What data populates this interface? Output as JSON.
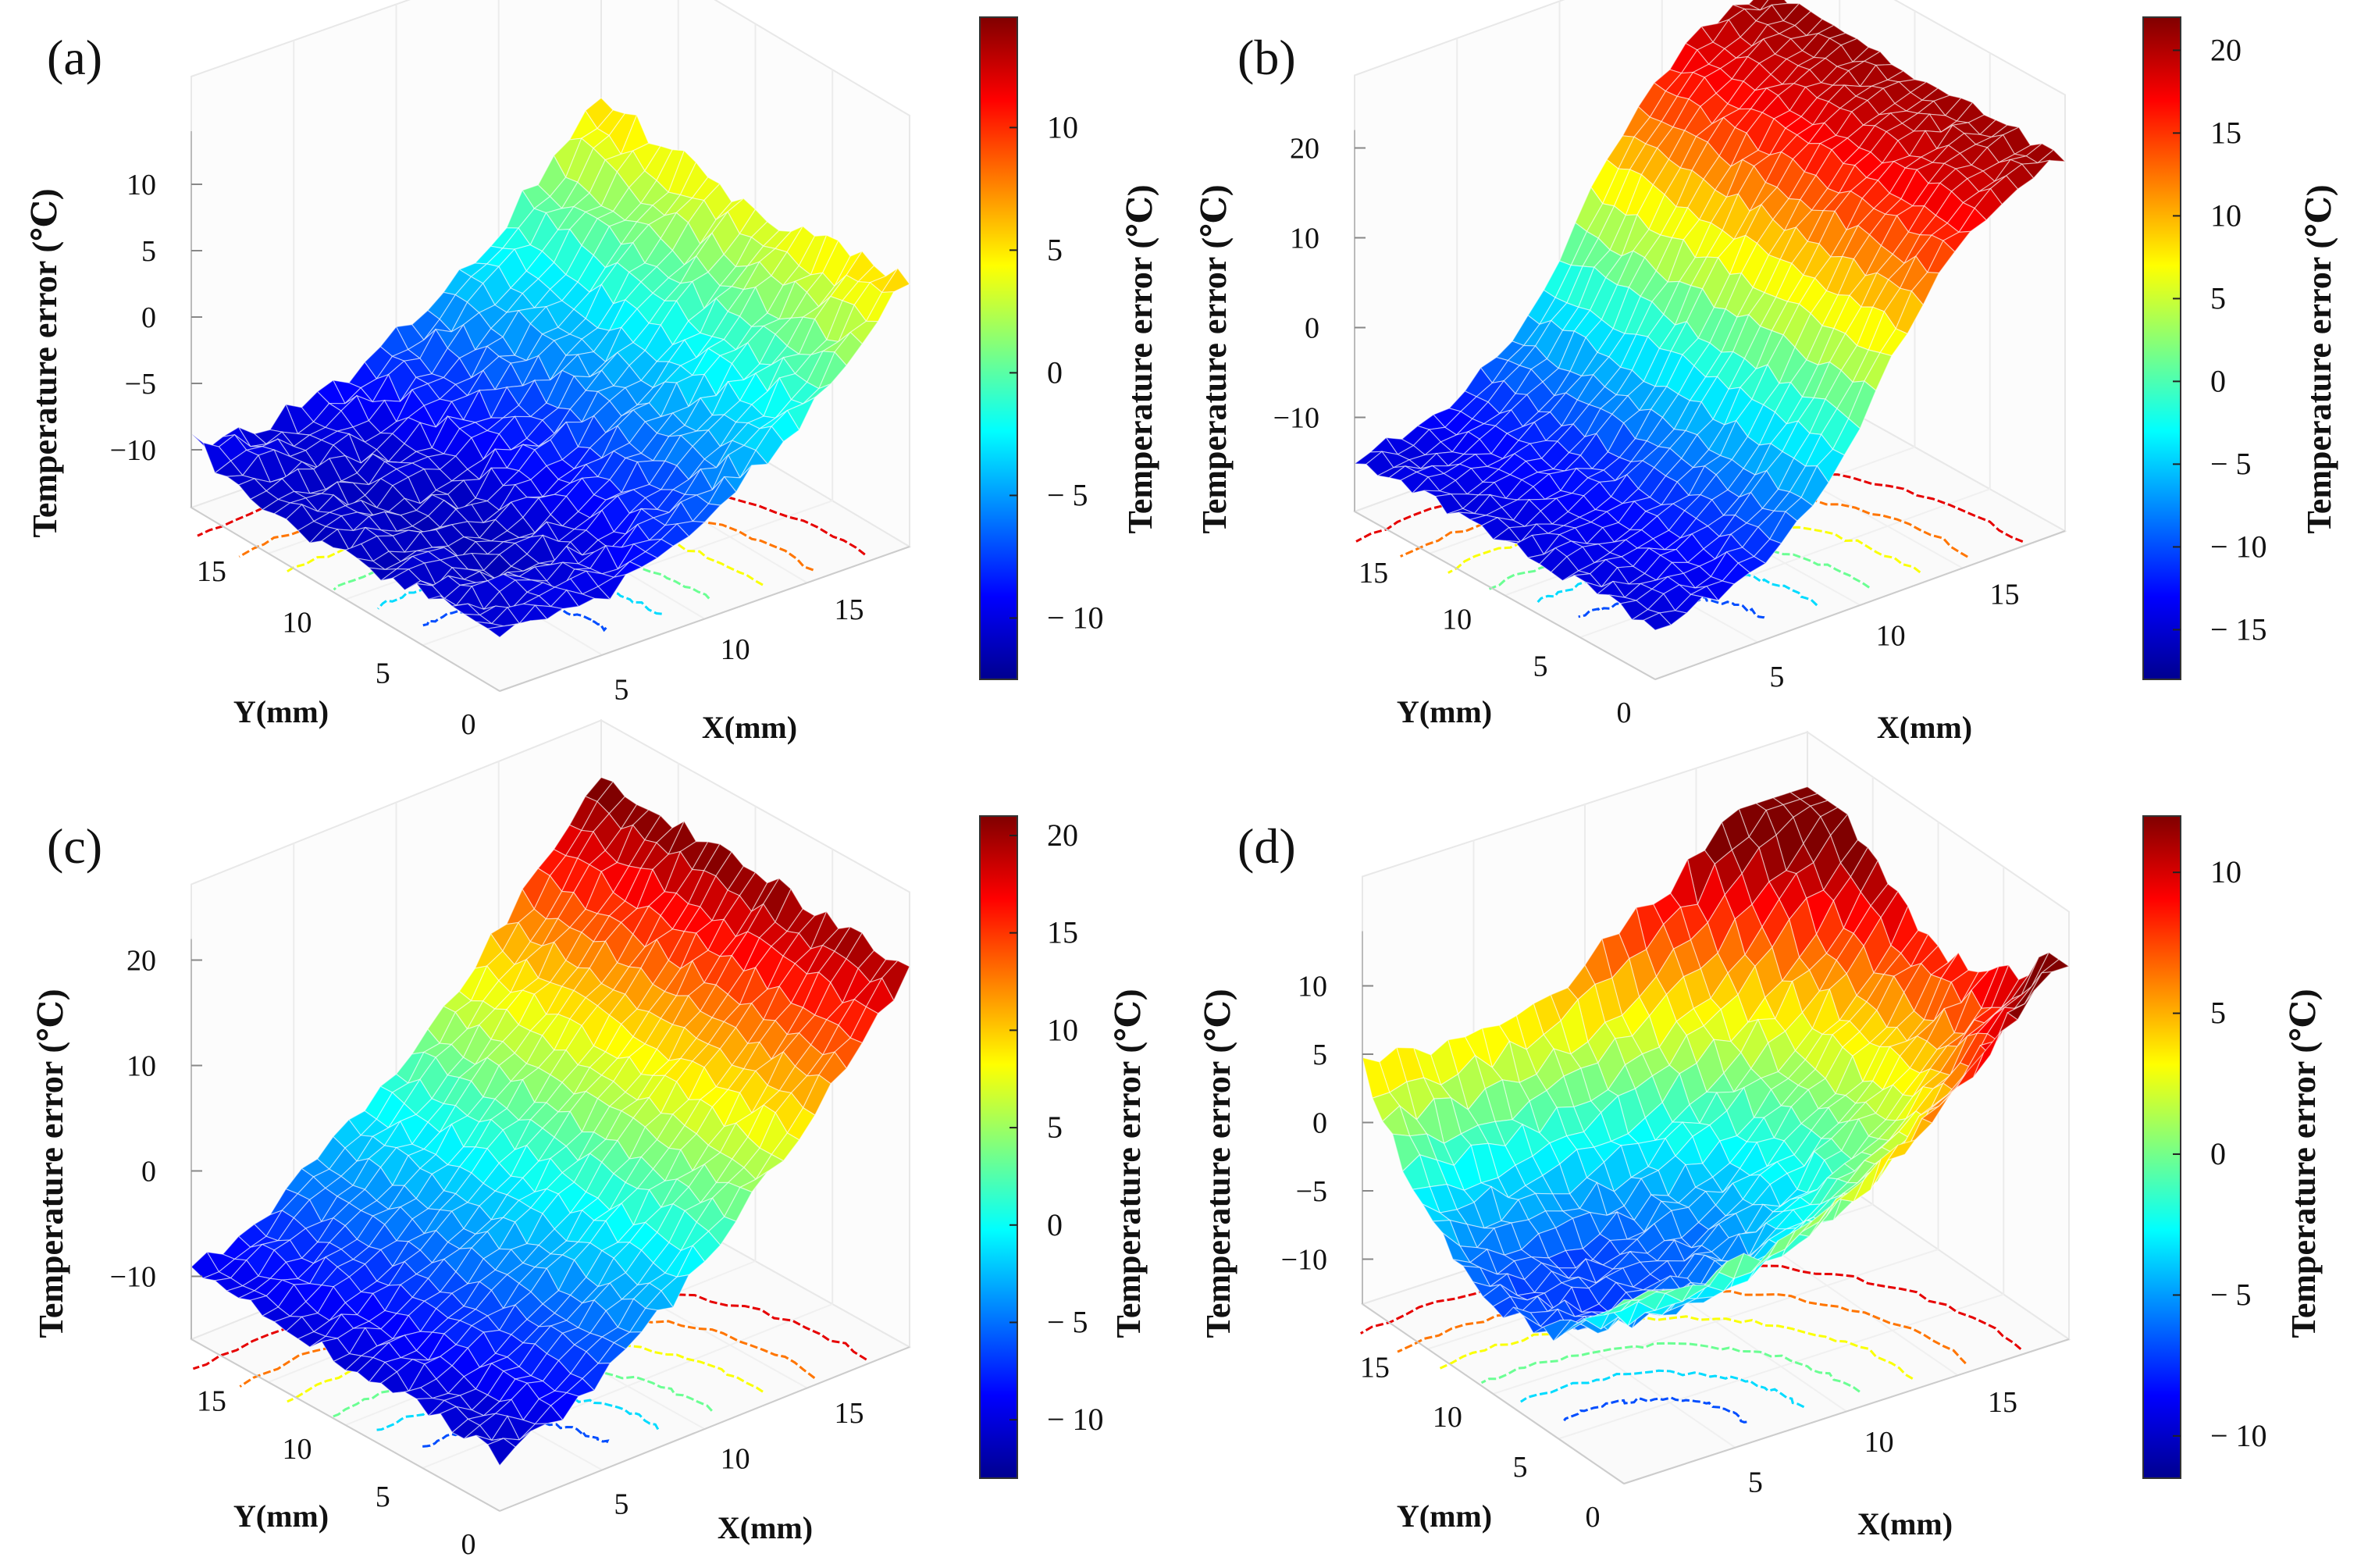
{
  "figure": {
    "panels": [
      {
        "id": "a",
        "label": "(a)"
      },
      {
        "id": "b",
        "label": "(b)"
      },
      {
        "id": "c",
        "label": "(c)"
      },
      {
        "id": "d",
        "label": "(d)"
      }
    ]
  },
  "chart_data": [
    {
      "panel": "(a)",
      "type": "surface",
      "zlabel": "Temperature error (℃)",
      "xlabel": "X(mm)",
      "ylabel": "Y(mm)",
      "xticks": [
        "5",
        "10",
        "15"
      ],
      "yticks": [
        "0",
        "5",
        "10",
        "15"
      ],
      "zticks": [
        "10",
        "5",
        "0",
        "−5",
        "−10"
      ],
      "xlim": [
        0,
        18
      ],
      "ylim": [
        0,
        18
      ],
      "zlim": [
        -12,
        14
      ],
      "shape": "bowl: minimum near center, rising toward high X",
      "colorbar": {
        "label": "Temperature error (℃)",
        "ticks": [
          "10",
          "5",
          "0",
          "− 5",
          "− 10"
        ],
        "values": [
          10,
          5,
          0,
          -5,
          -10
        ],
        "range": [
          -12.5,
          14.5
        ]
      }
    },
    {
      "panel": "(b)",
      "type": "surface",
      "zlabel": "Temperature error (℃)",
      "xlabel": "X(mm)",
      "ylabel": "Y(mm)",
      "xticks": [
        "5",
        "10",
        "15"
      ],
      "yticks": [
        "0",
        "5",
        "10",
        "15"
      ],
      "zticks": [
        "20",
        "10",
        "0",
        "−10"
      ],
      "xlim": [
        0,
        18
      ],
      "ylim": [
        0,
        18
      ],
      "zlim": [
        -17,
        22
      ],
      "shape": "ramp: rises monotonically along X",
      "colorbar": {
        "label": "Temperature error (℃)",
        "ticks": [
          "20",
          "15",
          "10",
          "5",
          "0",
          "− 5",
          "− 10",
          "− 15"
        ],
        "values": [
          20,
          15,
          10,
          5,
          0,
          -5,
          -10,
          -15
        ],
        "range": [
          -18,
          22
        ]
      }
    },
    {
      "panel": "(c)",
      "type": "surface",
      "zlabel": "Temperature error (℃)",
      "xlabel": "X(mm)",
      "ylabel": "Y(mm)",
      "xticks": [
        "5",
        "10",
        "15"
      ],
      "yticks": [
        "0",
        "5",
        "10",
        "15"
      ],
      "zticks": [
        "20",
        "10",
        "0",
        "−10"
      ],
      "xlim": [
        0,
        18
      ],
      "ylim": [
        0,
        18
      ],
      "zlim": [
        -13,
        22
      ],
      "shape": "ramp: rises along X with curvature",
      "colorbar": {
        "label": "Temperature error (℃)",
        "ticks": [
          "20",
          "15",
          "10",
          "5",
          "0",
          "− 5",
          "− 10"
        ],
        "values": [
          20,
          15,
          10,
          5,
          0,
          -5,
          -10
        ],
        "range": [
          -13,
          21
        ]
      }
    },
    {
      "panel": "(d)",
      "type": "surface",
      "zlabel": "Temperature error (℃)",
      "xlabel": "X(mm)",
      "ylabel": "Y(mm)",
      "xticks": [
        "5",
        "10",
        "15"
      ],
      "yticks": [
        "0",
        "5",
        "10",
        "15"
      ],
      "zticks": [
        "10",
        "5",
        "0",
        "−5",
        "−10"
      ],
      "xlim": [
        0,
        18
      ],
      "ylim": [
        0,
        18
      ],
      "zlim": [
        -11,
        14
      ],
      "shape": "bowl: minimum near center, high at X/Y edges",
      "colorbar": {
        "label": "Temperature error (℃)",
        "ticks": [
          "10",
          "5",
          "0",
          "− 5",
          "− 10"
        ],
        "values": [
          10,
          5,
          0,
          -5,
          -10
        ],
        "range": [
          -11.5,
          12
        ]
      }
    }
  ]
}
